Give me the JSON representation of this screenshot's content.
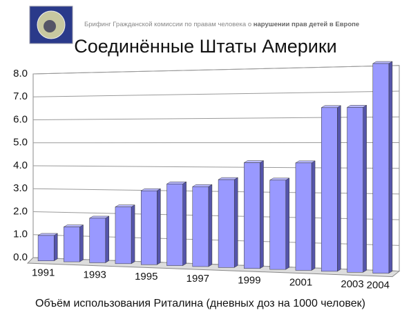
{
  "header": {
    "briefing": "Брифинг Гражданской комиссии по правам человека о",
    "briefing_bold": "нарушении прав детей в Европе"
  },
  "chart_data": {
    "type": "bar",
    "title": "Соединённые Штаты Америки",
    "x_label": "Объём использования Риталина (дневных доз на 1000 человек)",
    "categories": [
      "1991",
      null,
      "1993",
      null,
      "1995",
      null,
      "1997",
      null,
      "1999",
      null,
      "2001",
      null,
      "2003",
      "2004"
    ],
    "values": [
      1.1,
      1.5,
      1.9,
      2.4,
      3.1,
      3.4,
      3.3,
      3.6,
      4.3,
      3.6,
      4.3,
      6.5,
      6.5,
      8.2
    ],
    "color": "#9999ff",
    "ylim": [
      0,
      8
    ],
    "yticks": [
      {
        "value": 0,
        "label": "0.0"
      },
      {
        "value": 1,
        "label": "1.0"
      },
      {
        "value": 2,
        "label": "2.0"
      },
      {
        "value": 3,
        "label": "3.0"
      },
      {
        "value": 4,
        "label": "4.0"
      },
      {
        "value": 5,
        "label": "5.0"
      },
      {
        "value": 6,
        "label": "6.0"
      },
      {
        "value": 7,
        "label": "7.0"
      },
      {
        "value": 8,
        "label": "8.0"
      }
    ],
    "grid": true
  }
}
